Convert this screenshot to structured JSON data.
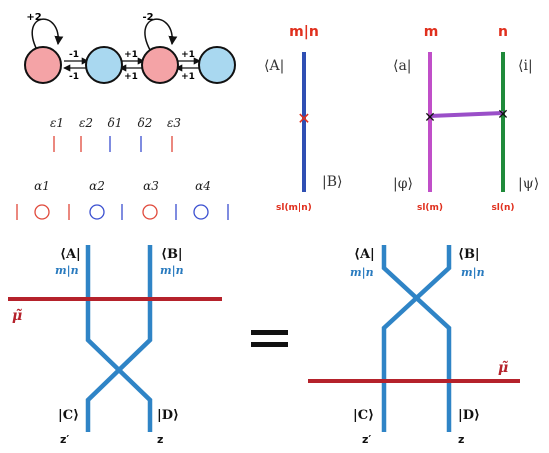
{
  "graph": {
    "labels": {
      "loop1": "+2",
      "loop2": "-2",
      "e1_top": "-1",
      "e1_bot": "-1",
      "e2_top": "+1",
      "e2_bot": "+1",
      "e3_top": "+1",
      "e3_bot": "+1"
    },
    "colors": {
      "pink": "#f4a3a6",
      "blue": "#a9d8f0"
    }
  },
  "sequence_eps": {
    "labels": [
      "ε1",
      "ε2",
      "δ1",
      "δ2",
      "ε3"
    ],
    "tick_colors": [
      "#e0483a",
      "#e0483a",
      "#3a4fd0",
      "#3a4fd0",
      "#e0483a"
    ]
  },
  "sequence_alpha": {
    "labels": [
      "α1",
      "α2",
      "α3",
      "α4"
    ]
  },
  "single_line": {
    "top": "m|n",
    "bra": "⟨A|",
    "ket": "|B⟩",
    "bottom": "sl(m|n)"
  },
  "two_lines": {
    "top_left": "m",
    "top_right": "n",
    "bra_left": "⟨a|",
    "bra_right": "⟨i|",
    "ket_left": "|φ⟩",
    "ket_right": "|ψ⟩",
    "bottom_left": "sl(m)",
    "bottom_right": "sl(n)"
  },
  "equation": {
    "left": {
      "bra_a": "⟨A|",
      "bra_b": "⟨B|",
      "rep_a": "m|n",
      "rep_b": "m|n",
      "mu": "μ̃",
      "ket_c": "|C⟩",
      "ket_d": "|D⟩",
      "bot_c": "z′",
      "bot_d": "z"
    },
    "right": {
      "bra_a": "⟨A|",
      "bra_b": "⟨B|",
      "rep_a": "m|n",
      "rep_b": "m|n",
      "mu": "μ̃",
      "ket_c": "|C⟩",
      "ket_d": "|D⟩",
      "bot_c": "z′",
      "bot_d": "z"
    }
  }
}
